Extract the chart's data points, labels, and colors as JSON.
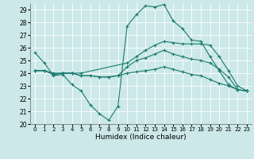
{
  "title": "",
  "xlabel": "Humidex (Indice chaleur)",
  "bg_color": "#cce8e8",
  "grid_color": "#ffffff",
  "line_color": "#1a7a6e",
  "xlim": [
    -0.5,
    23.5
  ],
  "ylim": [
    20,
    29.5
  ],
  "yticks": [
    20,
    21,
    22,
    23,
    24,
    25,
    26,
    27,
    28,
    29
  ],
  "xtick_labels": [
    "0",
    "1",
    "2",
    "3",
    "4",
    "5",
    "6",
    "7",
    "8",
    "9",
    "10",
    "11",
    "12",
    "13",
    "14",
    "15",
    "16",
    "17",
    "18",
    "19",
    "20",
    "21",
    "22",
    "23"
  ],
  "series": [
    {
      "x": [
        0,
        1,
        2,
        3,
        4,
        5,
        6,
        7,
        8,
        9,
        10,
        11,
        12,
        13,
        14,
        15,
        16,
        17,
        18,
        19,
        20,
        21,
        22,
        23
      ],
      "y": [
        25.6,
        24.8,
        23.8,
        23.9,
        23.1,
        22.6,
        21.5,
        20.8,
        20.3,
        21.4,
        27.7,
        28.6,
        29.3,
        29.2,
        29.4,
        28.1,
        27.5,
        26.6,
        26.5,
        25.3,
        24.2,
        23.1,
        22.7,
        22.6
      ]
    },
    {
      "x": [
        0,
        1,
        2,
        3,
        4,
        5,
        10,
        11,
        12,
        13,
        14,
        15,
        16,
        17,
        18,
        19,
        20,
        21,
        22,
        23
      ],
      "y": [
        24.2,
        24.2,
        24.0,
        24.0,
        24.0,
        24.0,
        24.8,
        25.3,
        25.8,
        26.2,
        26.5,
        26.4,
        26.3,
        26.3,
        26.3,
        26.2,
        25.3,
        24.2,
        23.0,
        22.6
      ]
    },
    {
      "x": [
        0,
        1,
        2,
        3,
        4,
        5,
        6,
        7,
        8,
        9,
        10,
        11,
        12,
        13,
        14,
        15,
        16,
        17,
        18,
        19,
        20,
        21,
        22,
        23
      ],
      "y": [
        24.2,
        24.2,
        23.9,
        24.0,
        24.0,
        23.8,
        23.8,
        23.7,
        23.7,
        23.8,
        24.5,
        25.0,
        25.2,
        25.5,
        25.8,
        25.5,
        25.3,
        25.1,
        25.0,
        24.8,
        24.3,
        23.7,
        22.7,
        22.6
      ]
    },
    {
      "x": [
        0,
        1,
        2,
        3,
        4,
        5,
        6,
        7,
        8,
        9,
        10,
        11,
        12,
        13,
        14,
        15,
        16,
        17,
        18,
        19,
        20,
        21,
        22,
        23
      ],
      "y": [
        24.2,
        24.2,
        23.9,
        24.0,
        24.0,
        23.8,
        23.8,
        23.7,
        23.7,
        23.8,
        24.0,
        24.1,
        24.2,
        24.3,
        24.5,
        24.3,
        24.1,
        23.9,
        23.8,
        23.5,
        23.2,
        23.0,
        22.7,
        22.6
      ]
    }
  ]
}
